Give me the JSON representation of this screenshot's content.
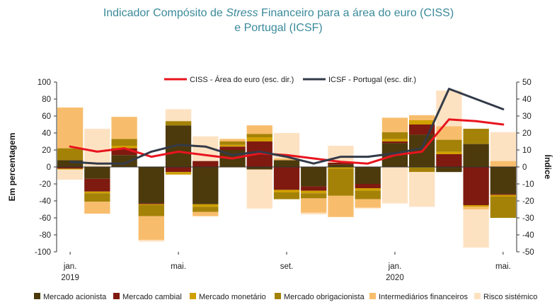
{
  "title": {
    "line1_pre": "Indicador Compósito de ",
    "line1_italic": "Stress",
    "line1_post": " Financeiro para a área do euro (CISS)",
    "line2": "e Portugal (ICSF)"
  },
  "chart_data": {
    "type": "bar",
    "subtype": "stacked bar with dual-axis lines",
    "categories": [
      "jan. 2019",
      "fev. 2019",
      "mar. 2019",
      "abr. 2019",
      "mai. 2019",
      "jun. 2019",
      "jul. 2019",
      "ago. 2019",
      "set. 2019",
      "out. 2019",
      "nov. 2019",
      "dez. 2019",
      "jan. 2020",
      "fev. 2020",
      "mar. 2020",
      "abr. 2020",
      "mai. 2020"
    ],
    "x_tick_labels": [
      {
        "index": 0,
        "line1": "jan.",
        "line2": "2019"
      },
      {
        "index": 4,
        "line1": "mai.",
        "line2": ""
      },
      {
        "index": 8,
        "line1": "set.",
        "line2": ""
      },
      {
        "index": 12,
        "line1": "jan.",
        "line2": "2020"
      },
      {
        "index": 16,
        "line1": "mai.",
        "line2": ""
      }
    ],
    "ylabel": "Em percentagem",
    "y2label": "Índice",
    "ylim": [
      -100,
      100
    ],
    "y_ticks": [
      -100,
      -80,
      -60,
      -40,
      -20,
      0,
      20,
      40,
      60,
      80,
      100
    ],
    "y2lim": [
      -50,
      50
    ],
    "y2_ticks": [
      -50,
      -40,
      -30,
      -20,
      -10,
      0,
      10,
      20,
      30,
      40,
      50
    ],
    "series": [
      {
        "name": "Mercado acionista",
        "color": "#4d3a0c",
        "values": [
          8,
          -14,
          14,
          -43,
          49,
          -44,
          20,
          -3,
          8,
          -23,
          3,
          -20,
          28,
          38,
          -6,
          27,
          -32
        ]
      },
      {
        "name": "Mercado cambial",
        "color": "#7f1a10",
        "values": [
          -2,
          -15,
          8,
          -1,
          -6,
          7,
          4,
          30,
          -27,
          -5,
          2,
          -5,
          2,
          12,
          15,
          -45,
          -1
        ]
      },
      {
        "name": "Mercado monetário",
        "color": "#d0a000",
        "values": [
          -1,
          -2,
          3,
          -1,
          -3,
          -3,
          2,
          5,
          -3,
          -3,
          -2,
          -3,
          3,
          5,
          3,
          -2,
          -2
        ]
      },
      {
        "name": "Mercado obrigacionista",
        "color": "#a48208",
        "values": [
          14,
          -10,
          8,
          -13,
          5,
          -6,
          4,
          4,
          -8,
          -6,
          -32,
          -10,
          8,
          -6,
          14,
          18,
          -25
        ]
      },
      {
        "name": "Intermediários financeiros",
        "color": "#f8bd6c",
        "values": [
          48,
          -14,
          26,
          -28,
          0,
          -5,
          3,
          10,
          2,
          -17,
          -25,
          -10,
          17,
          6,
          16,
          -3,
          7
        ]
      },
      {
        "name": "Risco sistémico",
        "color": "#fde2c2",
        "values": [
          -12,
          45,
          0,
          -2,
          14,
          29,
          -1,
          -46,
          30,
          -2,
          20,
          -1,
          -43,
          -41,
          42,
          -45,
          34
        ]
      }
    ],
    "lines": [
      {
        "name": "CISS - Área do euro (esc. dir.)",
        "color": "#e8141e",
        "axis": "right",
        "values": [
          12,
          9,
          11,
          6,
          9,
          7,
          5,
          8,
          7,
          5,
          3,
          2,
          7,
          9,
          28,
          27,
          25
        ]
      },
      {
        "name": "ICSF - Portugal (esc. dir.)",
        "color": "#333a48",
        "axis": "right",
        "values": [
          3,
          2,
          2,
          9,
          13,
          12,
          7,
          9,
          6,
          2,
          6,
          6,
          8,
          11,
          46,
          40,
          34
        ]
      }
    ]
  }
}
